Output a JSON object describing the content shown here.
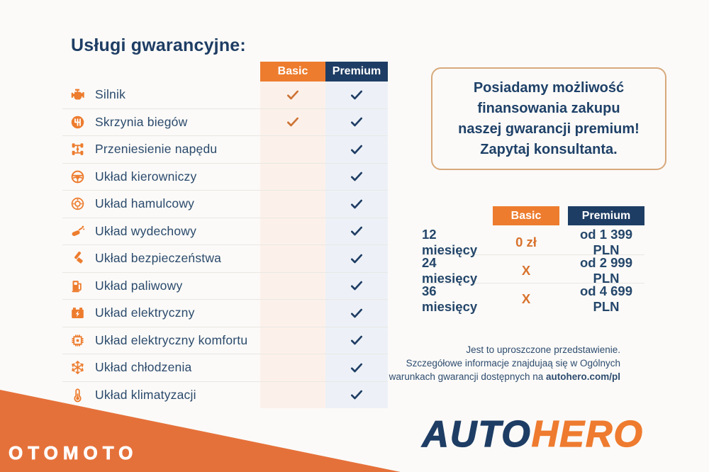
{
  "colors": {
    "orange": "#ed7c2e",
    "navy": "#1e3d64",
    "label": "#2b4a6c",
    "check_orange": "#cd7335",
    "basic_tint": "#fcf1ea",
    "premium_tint": "#edf1f7",
    "line": "#e8e7e4",
    "promo_border": "#d8a97c",
    "wedge": "#e5713a",
    "fineprint": "#2e4c6f"
  },
  "services": {
    "title": "Usługi gwarancyjne:",
    "columns": {
      "basic": "Basic",
      "premium": "Premium"
    },
    "rows": [
      {
        "icon": "engine-icon",
        "label": "Silnik",
        "basic": true,
        "premium": true
      },
      {
        "icon": "gearbox-icon",
        "label": "Skrzynia biegów",
        "basic": true,
        "premium": true
      },
      {
        "icon": "drivetrain-icon",
        "label": "Przeniesienie napędu",
        "basic": false,
        "premium": true
      },
      {
        "icon": "steering-wheel-icon",
        "label": "Układ kierowniczy",
        "basic": false,
        "premium": true
      },
      {
        "icon": "brake-disc-icon",
        "label": "Układ hamulcowy",
        "basic": false,
        "premium": true
      },
      {
        "icon": "exhaust-icon",
        "label": "Układ wydechowy",
        "basic": false,
        "premium": true
      },
      {
        "icon": "seatbelt-icon",
        "label": "Układ bezpieczeństwa",
        "basic": false,
        "premium": true
      },
      {
        "icon": "fuel-pump-icon",
        "label": "Układ paliwowy",
        "basic": false,
        "premium": true
      },
      {
        "icon": "battery-icon",
        "label": "Układ elektryczny",
        "basic": false,
        "premium": true
      },
      {
        "icon": "chip-icon",
        "label": "Układ elektryczny komfortu",
        "basic": false,
        "premium": true
      },
      {
        "icon": "snowflake-icon",
        "label": "Układ chłodzenia",
        "basic": false,
        "premium": true
      },
      {
        "icon": "thermometer-icon",
        "label": "Układ klimatyzacji",
        "basic": false,
        "premium": true
      }
    ]
  },
  "promo": {
    "text_lines": [
      "Posiadamy możliwość",
      "finansowania zakupu",
      "naszej gwarancji premium!",
      "Zapytaj konsultanta."
    ]
  },
  "pricing": {
    "columns": {
      "basic": "Basic",
      "premium": "Premium"
    },
    "rows": [
      {
        "period": "12 miesięcy",
        "basic": "0 zł",
        "premium": "od 1 399 PLN"
      },
      {
        "period": "24 miesięcy",
        "basic": "X",
        "premium": "od 2 999 PLN"
      },
      {
        "period": "36 miesięcy",
        "basic": "X",
        "premium": "od 4 699 PLN"
      }
    ]
  },
  "disclaimer": {
    "lines": [
      "Jest to uproszczone przedstawienie.",
      "Szczegółowe informacje znajdujaą się w Ogólnych",
      "warunkach gwarancji dostępnych na "
    ],
    "bold_tail": "autohero.com/pl"
  },
  "branding": {
    "autohero": {
      "part1": "AUTO",
      "part2": "HERO"
    },
    "otomoto": "OTOMOTO"
  }
}
